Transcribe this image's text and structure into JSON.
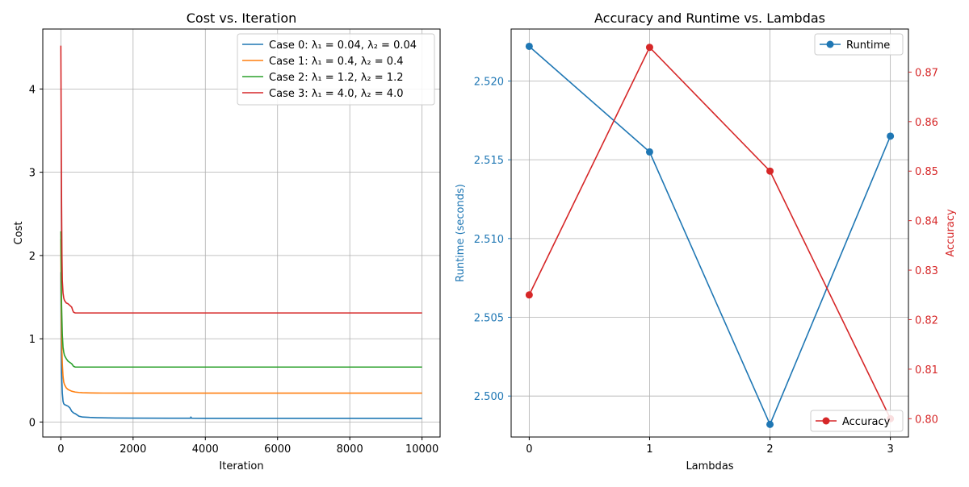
{
  "chart_data": [
    {
      "type": "line",
      "title": "Cost vs. Iteration",
      "xlabel": "Iteration",
      "ylabel": "Cost",
      "xlim": [
        -500,
        10500
      ],
      "ylim": [
        -0.18,
        4.72
      ],
      "xticks": [
        0,
        2000,
        4000,
        6000,
        8000,
        10000
      ],
      "yticks": [
        0,
        1,
        2,
        3,
        4
      ],
      "grid": true,
      "legend": "top-right",
      "colors": [
        "#1f77b4",
        "#ff7f0e",
        "#2ca02c",
        "#d62728"
      ],
      "series": [
        {
          "name": "Case 0: λ₁ = 0.04, λ₂ = 0.04",
          "x": [
            0,
            10,
            20,
            40,
            60,
            80,
            100,
            150,
            200,
            250,
            300,
            350,
            400,
            500,
            600,
            800,
            1000,
            1500,
            2000,
            3000,
            3590,
            3600,
            3620,
            4000,
            6000,
            8000,
            10000
          ],
          "y": [
            1.8,
            0.9,
            0.6,
            0.35,
            0.25,
            0.22,
            0.21,
            0.2,
            0.19,
            0.17,
            0.13,
            0.11,
            0.1,
            0.07,
            0.06,
            0.055,
            0.052,
            0.048,
            0.047,
            0.046,
            0.046,
            0.06,
            0.046,
            0.045,
            0.045,
            0.045,
            0.045
          ]
        },
        {
          "name": "Case 1: λ₁ = 0.4, λ₂ = 0.4",
          "x": [
            0,
            10,
            20,
            40,
            60,
            80,
            100,
            150,
            200,
            300,
            400,
            500,
            600,
            800,
            1000,
            2000,
            4000,
            6000,
            8000,
            10000
          ],
          "y": [
            2.2,
            1.4,
            1.0,
            0.7,
            0.55,
            0.48,
            0.45,
            0.41,
            0.39,
            0.37,
            0.36,
            0.355,
            0.352,
            0.35,
            0.348,
            0.347,
            0.347,
            0.347,
            0.347,
            0.347
          ]
        },
        {
          "name": "Case 2: λ₁ = 1.2, λ₂ = 1.2",
          "x": [
            0,
            10,
            20,
            40,
            60,
            80,
            100,
            150,
            200,
            300,
            350,
            400,
            500,
            1000,
            2000,
            4000,
            6000,
            8000,
            10000
          ],
          "y": [
            2.29,
            1.8,
            1.4,
            1.05,
            0.9,
            0.84,
            0.8,
            0.76,
            0.73,
            0.7,
            0.67,
            0.66,
            0.66,
            0.66,
            0.66,
            0.66,
            0.66,
            0.66,
            0.66
          ]
        },
        {
          "name": "Case 3: λ₁ = 4.0, λ₂ = 4.0",
          "x": [
            0,
            10,
            20,
            30,
            40,
            60,
            80,
            100,
            150,
            200,
            250,
            300,
            330,
            350,
            400,
            500,
            1000,
            2000,
            4000,
            6000,
            8000,
            10000
          ],
          "y": [
            4.52,
            3.5,
            2.6,
            2.0,
            1.7,
            1.55,
            1.49,
            1.46,
            1.43,
            1.42,
            1.4,
            1.38,
            1.34,
            1.32,
            1.31,
            1.31,
            1.31,
            1.31,
            1.31,
            1.31,
            1.31,
            1.31
          ]
        }
      ]
    },
    {
      "type": "line",
      "title": "Accuracy and Runtime vs. Lambdas",
      "xlabel": "Lambdas",
      "ylabel": "Runtime (seconds)",
      "y2label": "Accuracy",
      "categories": [
        "0",
        "1",
        "2",
        "3"
      ],
      "xlim": [
        -0.15,
        3.15
      ],
      "ylim": [
        2.4974,
        2.5233
      ],
      "y2lim": [
        0.7963,
        0.8787
      ],
      "yticks": [
        "2.500",
        "2.505",
        "2.510",
        "2.515",
        "2.520"
      ],
      "y2ticks": [
        "0.80",
        "0.81",
        "0.82",
        "0.83",
        "0.84",
        "0.85",
        "0.86",
        "0.87"
      ],
      "grid": true,
      "colors": [
        "#1f77b4",
        "#d62728"
      ],
      "series": [
        {
          "name": "Runtime",
          "axis": "left",
          "legend": "top-right",
          "values": [
            2.5222,
            2.5155,
            2.4982,
            2.5165
          ]
        },
        {
          "name": "Accuracy",
          "axis": "right",
          "legend": "bottom-right",
          "values": [
            0.825,
            0.875,
            0.85,
            0.8
          ]
        }
      ]
    }
  ]
}
